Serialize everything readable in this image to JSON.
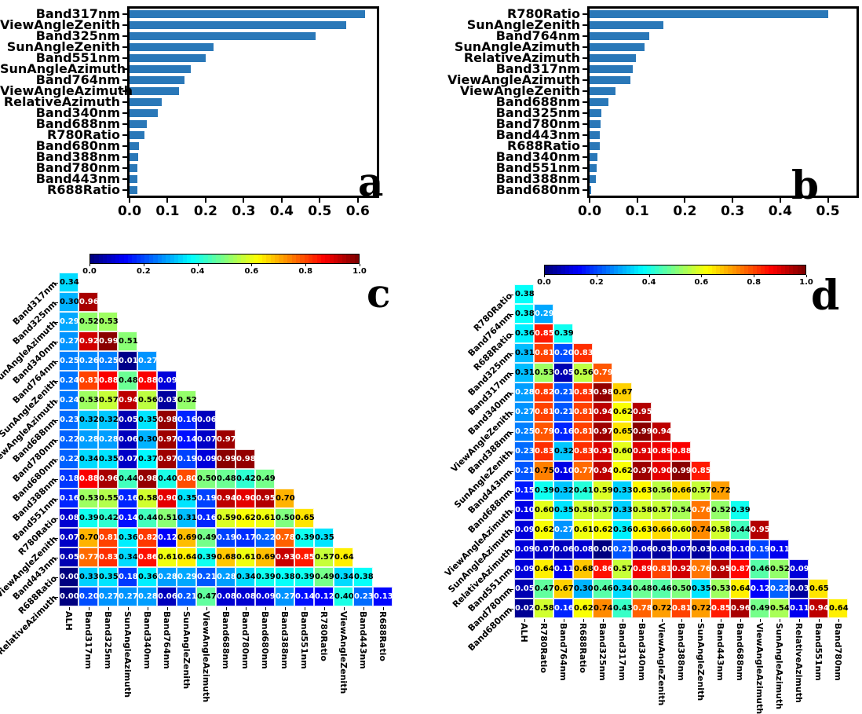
{
  "colors": {
    "bar": "#2a78b8",
    "axis": "#000000"
  },
  "chart_data": [
    {
      "id": "a",
      "type": "bar",
      "orientation": "horizontal",
      "panel_label": "a",
      "title": "",
      "xlabel": "",
      "ylabel": "",
      "xlim": [
        0,
        0.65
      ],
      "xticks": [
        0.0,
        0.1,
        0.2,
        0.3,
        0.4,
        0.5,
        0.6
      ],
      "categories": [
        "Band317nm",
        "ViewAngleZenith",
        "Band325nm",
        "SunAngleZenith",
        "Band551nm",
        "SunAngleAzimuth",
        "Band764nm",
        "ViewAngleAzimuth",
        "RelativeAzimuth",
        "Band340nm",
        "Band688nm",
        "R780Ratio",
        "Band680nm",
        "Band388nm",
        "Band780nm",
        "Band443nm",
        "R688Ratio"
      ],
      "values": [
        0.62,
        0.57,
        0.49,
        0.22,
        0.2,
        0.16,
        0.145,
        0.13,
        0.085,
        0.075,
        0.045,
        0.04,
        0.025,
        0.023,
        0.021,
        0.021,
        0.02
      ]
    },
    {
      "id": "b",
      "type": "bar",
      "orientation": "horizontal",
      "panel_label": "b",
      "title": "",
      "xlabel": "",
      "ylabel": "",
      "xlim": [
        0,
        0.56
      ],
      "xticks": [
        0.0,
        0.1,
        0.2,
        0.3,
        0.4,
        0.5
      ],
      "categories": [
        "R780Ratio",
        "SunAngleZenith",
        "Band764nm",
        "SunAngleAzimuth",
        "RelativeAzimuth",
        "Band317nm",
        "ViewAngleAzimuth",
        "ViewAngleZenith",
        "Band688nm",
        "Band325nm",
        "Band780nm",
        "Band443nm",
        "R688Ratio",
        "Band340nm",
        "Band551nm",
        "Band388nm",
        "Band680nm"
      ],
      "values": [
        0.5,
        0.155,
        0.125,
        0.115,
        0.097,
        0.09,
        0.085,
        0.055,
        0.04,
        0.024,
        0.023,
        0.022,
        0.021,
        0.017,
        0.015,
        0.013,
        0.003
      ]
    },
    {
      "id": "c",
      "type": "heatmap",
      "shape": "lower-triangle",
      "panel_label": "c",
      "colormap": "jet",
      "vmin": 0.0,
      "vmax": 1.0,
      "colorbar_ticks": [
        0.0,
        0.2,
        0.4,
        0.6,
        0.8,
        1.0
      ],
      "col_labels": [
        "ALH",
        "Band317nm",
        "Band325nm",
        "SunAngleAzimuth",
        "Band340nm",
        "Band764nm",
        "SunAngleZenith",
        "ViewAngleAzimuth",
        "Band688nm",
        "Band780nm",
        "Band680nm",
        "Band388nm",
        "Band551nm",
        "R780Ratio",
        "ViewAngleZenith",
        "Band443nm",
        "R688Ratio"
      ],
      "row_labels": [
        "Band317nm",
        "Band325nm",
        "SunAngleAzimuth",
        "Band340nm",
        "Band764nm",
        "SunAngleZenith",
        "ViewAngleAzimuth",
        "Band688nm",
        "Band780nm",
        "Band680nm",
        "Band388nm",
        "Band551nm",
        "R780Ratio",
        "ViewAngleZenith",
        "Band443nm",
        "R688Ratio",
        "RelativeAzimuth"
      ],
      "values": [
        [
          0.34
        ],
        [
          0.3,
          0.96
        ],
        [
          0.29,
          0.52,
          0.53
        ],
        [
          0.27,
          0.92,
          0.99,
          0.51
        ],
        [
          0.25,
          0.26,
          0.25,
          0.01,
          0.27
        ],
        [
          0.24,
          0.81,
          0.88,
          0.48,
          0.88,
          0.09
        ],
        [
          0.24,
          0.53,
          0.57,
          0.94,
          0.56,
          0.03,
          0.52
        ],
        [
          0.23,
          0.32,
          0.32,
          0.05,
          0.35,
          0.98,
          0.16,
          0.06
        ],
        [
          0.22,
          0.28,
          0.28,
          0.06,
          0.3,
          0.97,
          0.14,
          0.07,
          0.97
        ],
        [
          0.22,
          0.34,
          0.35,
          0.07,
          0.37,
          0.97,
          0.19,
          0.09,
          0.99,
          0.98
        ],
        [
          0.18,
          0.88,
          0.96,
          0.44,
          0.98,
          0.4,
          0.8,
          0.5,
          0.48,
          0.42,
          0.49
        ],
        [
          0.16,
          0.53,
          0.55,
          0.16,
          0.58,
          0.9,
          0.35,
          0.19,
          0.94,
          0.9,
          0.95,
          0.7
        ],
        [
          0.08,
          0.39,
          0.42,
          0.14,
          0.44,
          0.51,
          0.31,
          0.16,
          0.59,
          0.62,
          0.61,
          0.5,
          0.65
        ],
        [
          0.07,
          0.7,
          0.81,
          0.36,
          0.82,
          0.12,
          0.69,
          0.49,
          0.19,
          0.17,
          0.22,
          0.78,
          0.39,
          0.35
        ],
        [
          0.05,
          0.77,
          0.83,
          0.34,
          0.86,
          0.61,
          0.64,
          0.39,
          0.68,
          0.61,
          0.69,
          0.93,
          0.85,
          0.57,
          0.64
        ],
        [
          0.0,
          0.33,
          0.35,
          0.18,
          0.36,
          0.28,
          0.29,
          0.21,
          0.28,
          0.34,
          0.39,
          0.38,
          0.39,
          0.49,
          0.34,
          0.38
        ],
        [
          0.0,
          0.2,
          0.27,
          0.27,
          0.28,
          0.06,
          0.21,
          0.47,
          0.08,
          0.08,
          0.09,
          0.27,
          0.14,
          0.12,
          0.4,
          0.23,
          0.13
        ]
      ]
    },
    {
      "id": "d",
      "type": "heatmap",
      "shape": "lower-triangle",
      "panel_label": "d",
      "colormap": "jet",
      "vmin": 0.0,
      "vmax": 1.0,
      "colorbar_ticks": [
        0.0,
        0.2,
        0.4,
        0.6,
        0.8,
        1.0
      ],
      "col_labels": [
        "ALH",
        "R780Ratio",
        "Band764nm",
        "R688Ratio",
        "Band325nm",
        "Band317nm",
        "Band340nm",
        "ViewAngleZenith",
        "Band388nm",
        "SunAngleZenith",
        "Band443nm",
        "Band688nm",
        "ViewAngleAzimuth",
        "SunAngleAzimuth",
        "RelativeAzimuth",
        "Band551nm",
        "Band780nm"
      ],
      "row_labels": [
        "R780Ratio",
        "Band764nm",
        "R688Ratio",
        "Band325nm",
        "Band317nm",
        "Band340nm",
        "ViewAngleZenith",
        "Band388nm",
        "SunAngleZenith",
        "Band443nm",
        "Band688nm",
        "ViewAngleAzimuth",
        "SunAngleAzimuth",
        "RelativeAzimuth",
        "Band551nm",
        "Band780nm",
        "Band680nm"
      ],
      "values": [
        [
          0.38
        ],
        [
          0.38,
          0.29
        ],
        [
          0.36,
          0.85,
          0.39
        ],
        [
          0.31,
          0.81,
          0.2,
          0.83
        ],
        [
          0.31,
          0.53,
          0.05,
          0.56,
          0.79
        ],
        [
          0.28,
          0.82,
          0.21,
          0.83,
          0.98,
          0.67
        ],
        [
          0.27,
          0.81,
          0.21,
          0.81,
          0.94,
          0.62,
          0.95
        ],
        [
          0.25,
          0.79,
          0.16,
          0.81,
          0.97,
          0.65,
          0.99,
          0.94
        ],
        [
          0.23,
          0.83,
          0.32,
          0.83,
          0.91,
          0.6,
          0.91,
          0.89,
          0.88
        ],
        [
          0.21,
          0.75,
          0.1,
          0.77,
          0.94,
          0.62,
          0.97,
          0.9,
          0.99,
          0.85
        ],
        [
          0.15,
          0.39,
          0.32,
          0.41,
          0.59,
          0.33,
          0.63,
          0.56,
          0.66,
          0.57,
          0.72
        ],
        [
          0.1,
          0.6,
          0.35,
          0.58,
          0.57,
          0.33,
          0.58,
          0.57,
          0.54,
          0.76,
          0.52,
          0.39
        ],
        [
          0.09,
          0.62,
          0.27,
          0.61,
          0.62,
          0.36,
          0.63,
          0.66,
          0.6,
          0.74,
          0.58,
          0.44,
          0.95
        ],
        [
          0.09,
          0.07,
          0.06,
          0.08,
          0.0,
          0.21,
          0.06,
          0.03,
          0.07,
          0.03,
          0.08,
          0.1,
          0.19,
          0.11
        ],
        [
          0.09,
          0.64,
          0.11,
          0.68,
          0.86,
          0.57,
          0.89,
          0.81,
          0.92,
          0.76,
          0.95,
          0.87,
          0.46,
          0.52,
          0.09
        ],
        [
          0.05,
          0.47,
          0.67,
          0.3,
          0.46,
          0.34,
          0.48,
          0.46,
          0.5,
          0.35,
          0.53,
          0.64,
          0.12,
          0.22,
          0.03,
          0.65
        ],
        [
          0.02,
          0.58,
          0.16,
          0.62,
          0.74,
          0.43,
          0.78,
          0.72,
          0.81,
          0.72,
          0.85,
          0.96,
          0.49,
          0.54,
          0.11,
          0.94,
          0.64
        ]
      ]
    }
  ]
}
